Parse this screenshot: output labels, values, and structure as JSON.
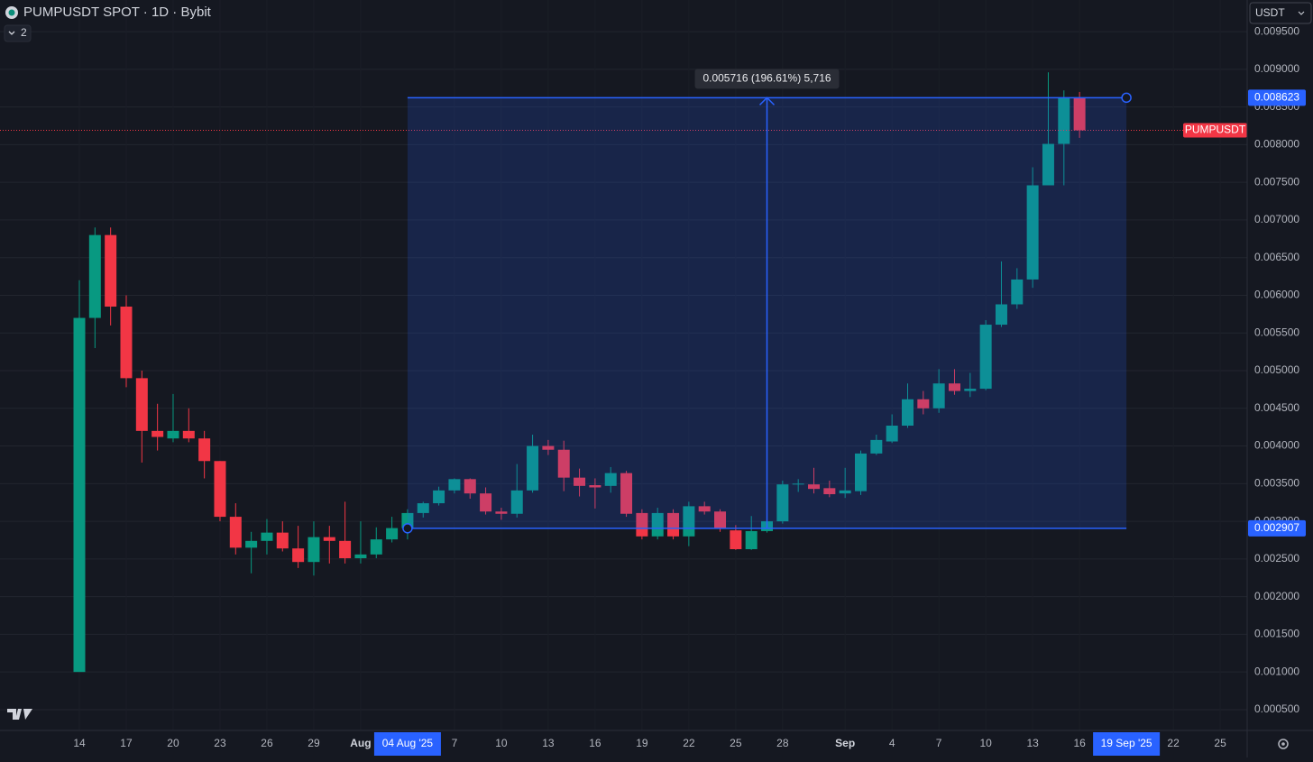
{
  "chart_data": {
    "type": "candlestick",
    "title": "PUMPUSDT SPOT · 1D · Bybit",
    "indicator_count": "2",
    "currency": "USDT",
    "x": [
      "2025-07-14",
      "2025-07-15",
      "2025-07-16",
      "2025-07-17",
      "2025-07-18",
      "2025-07-19",
      "2025-07-20",
      "2025-07-21",
      "2025-07-22",
      "2025-07-23",
      "2025-07-24",
      "2025-07-25",
      "2025-07-26",
      "2025-07-27",
      "2025-07-28",
      "2025-07-29",
      "2025-07-30",
      "2025-07-31",
      "2025-08-01",
      "2025-08-02",
      "2025-08-03",
      "2025-08-04",
      "2025-08-05",
      "2025-08-06",
      "2025-08-07",
      "2025-08-08",
      "2025-08-09",
      "2025-08-10",
      "2025-08-11",
      "2025-08-12",
      "2025-08-13",
      "2025-08-14",
      "2025-08-15",
      "2025-08-16",
      "2025-08-17",
      "2025-08-18",
      "2025-08-19",
      "2025-08-20",
      "2025-08-21",
      "2025-08-22",
      "2025-08-23",
      "2025-08-24",
      "2025-08-25",
      "2025-08-26",
      "2025-08-27",
      "2025-08-28",
      "2025-08-29",
      "2025-08-30",
      "2025-08-31",
      "2025-09-01",
      "2025-09-02",
      "2025-09-03",
      "2025-09-04",
      "2025-09-05",
      "2025-09-06",
      "2025-09-07",
      "2025-09-08",
      "2025-09-09",
      "2025-09-10",
      "2025-09-11",
      "2025-09-12",
      "2025-09-13",
      "2025-09-14",
      "2025-09-15",
      "2025-09-16"
    ],
    "open": [
      0.001,
      0.0057,
      0.0068,
      0.00585,
      0.0049,
      0.0042,
      0.0041,
      0.0042,
      0.0041,
      0.0038,
      0.00306,
      0.00265,
      0.00274,
      0.00285,
      0.00264,
      0.00246,
      0.00279,
      0.00274,
      0.00251,
      0.00256,
      0.00276,
      0.00291,
      0.00311,
      0.00324,
      0.00341,
      0.00356,
      0.00337,
      0.00313,
      0.0031,
      0.00341,
      0.004,
      0.00395,
      0.00358,
      0.00348,
      0.00347,
      0.00364,
      0.00311,
      0.0028,
      0.00311,
      0.0028,
      0.0032,
      0.00313,
      0.00288,
      0.00263,
      0.00287,
      0.003,
      0.00349,
      0.00349,
      0.00344,
      0.00337,
      0.0034,
      0.0039,
      0.00406,
      0.00427,
      0.00462,
      0.0045,
      0.00483,
      0.00473,
      0.00476,
      0.00561,
      0.00588,
      0.00621,
      0.00746,
      0.00801,
      0.00862
    ],
    "high": [
      0.0062,
      0.0069,
      0.0069,
      0.006,
      0.005,
      0.00456,
      0.00469,
      0.0045,
      0.0042,
      0.0038,
      0.00324,
      0.00286,
      0.00303,
      0.003,
      0.00294,
      0.003,
      0.00294,
      0.00326,
      0.003,
      0.00292,
      0.00306,
      0.00316,
      0.00326,
      0.00346,
      0.00357,
      0.00357,
      0.00345,
      0.00318,
      0.00376,
      0.00415,
      0.00408,
      0.00407,
      0.0037,
      0.00357,
      0.00372,
      0.00367,
      0.00316,
      0.00318,
      0.00316,
      0.00326,
      0.00326,
      0.00316,
      0.00295,
      0.00307,
      0.00311,
      0.00354,
      0.00356,
      0.00371,
      0.00354,
      0.00371,
      0.00394,
      0.00415,
      0.00442,
      0.00483,
      0.00473,
      0.00502,
      0.00502,
      0.00497,
      0.00567,
      0.00645,
      0.00636,
      0.0077,
      0.00896,
      0.00872,
      0.0087
    ],
    "low": [
      0.001,
      0.0053,
      0.0056,
      0.00478,
      0.00378,
      0.00394,
      0.00405,
      0.00405,
      0.00357,
      0.003,
      0.00256,
      0.00231,
      0.00256,
      0.0026,
      0.00238,
      0.00228,
      0.00244,
      0.00244,
      0.00244,
      0.00251,
      0.00272,
      0.00276,
      0.00305,
      0.00321,
      0.00337,
      0.0033,
      0.00309,
      0.00302,
      0.00305,
      0.00338,
      0.00388,
      0.0034,
      0.00333,
      0.00317,
      0.00338,
      0.00306,
      0.00276,
      0.00276,
      0.00276,
      0.00267,
      0.00309,
      0.00286,
      0.00262,
      0.00262,
      0.00285,
      0.00297,
      0.00339,
      0.00337,
      0.00332,
      0.00331,
      0.00335,
      0.00388,
      0.00404,
      0.00424,
      0.00442,
      0.00444,
      0.00468,
      0.00465,
      0.00474,
      0.00558,
      0.00582,
      0.0061,
      0.00746,
      0.00746,
      0.00809
    ],
    "close": [
      0.0057,
      0.0068,
      0.00585,
      0.0049,
      0.0042,
      0.00412,
      0.0042,
      0.0041,
      0.0038,
      0.00306,
      0.00265,
      0.00274,
      0.00285,
      0.00264,
      0.00246,
      0.00279,
      0.00274,
      0.00251,
      0.00256,
      0.00276,
      0.00291,
      0.00311,
      0.00324,
      0.00341,
      0.00356,
      0.00337,
      0.00313,
      0.0031,
      0.00341,
      0.004,
      0.00395,
      0.00358,
      0.00347,
      0.00345,
      0.00364,
      0.0031,
      0.0028,
      0.00311,
      0.0028,
      0.0032,
      0.00313,
      0.00291,
      0.00263,
      0.00287,
      0.003,
      0.00349,
      0.0035,
      0.00343,
      0.00336,
      0.00341,
      0.0039,
      0.00408,
      0.00427,
      0.00462,
      0.0045,
      0.00483,
      0.00473,
      0.00476,
      0.00561,
      0.00588,
      0.00621,
      0.00746,
      0.00801,
      0.00862,
      0.00819
    ],
    "up_color": "#089981",
    "down_color": "#f23645",
    "ylim": [
      0.000224,
      0.00992
    ],
    "yticks": [
      {
        "value": 0.0005,
        "label": "0.000500"
      },
      {
        "value": 0.001,
        "label": "0.001000"
      },
      {
        "value": 0.0015,
        "label": "0.001500"
      },
      {
        "value": 0.002,
        "label": "0.002000"
      },
      {
        "value": 0.0025,
        "label": "0.002500"
      },
      {
        "value": 0.003,
        "label": "0.003000"
      },
      {
        "value": 0.0035,
        "label": "0.003500"
      },
      {
        "value": 0.004,
        "label": "0.004000"
      },
      {
        "value": 0.0045,
        "label": "0.004500"
      },
      {
        "value": 0.005,
        "label": "0.005000"
      },
      {
        "value": 0.0055,
        "label": "0.005500"
      },
      {
        "value": 0.006,
        "label": "0.006000"
      },
      {
        "value": 0.0065,
        "label": "0.006500"
      },
      {
        "value": 0.007,
        "label": "0.007000"
      },
      {
        "value": 0.0075,
        "label": "0.007500"
      },
      {
        "value": 0.008,
        "label": "0.008000"
      },
      {
        "value": 0.0085,
        "label": "0.008500"
      },
      {
        "value": 0.009,
        "label": "0.009000"
      },
      {
        "value": 0.0095,
        "label": "0.009500"
      }
    ],
    "xticks": [
      {
        "value": "2025-07-14",
        "label": "14"
      },
      {
        "value": "2025-07-17",
        "label": "17"
      },
      {
        "value": "2025-07-20",
        "label": "20"
      },
      {
        "value": "2025-07-23",
        "label": "23"
      },
      {
        "value": "2025-07-26",
        "label": "26"
      },
      {
        "value": "2025-07-29",
        "label": "29"
      },
      {
        "value": "2025-08-01",
        "label": "Aug"
      },
      {
        "value": "2025-08-07",
        "label": "7"
      },
      {
        "value": "2025-08-10",
        "label": "10"
      },
      {
        "value": "2025-08-13",
        "label": "13"
      },
      {
        "value": "2025-08-16",
        "label": "16"
      },
      {
        "value": "2025-08-19",
        "label": "19"
      },
      {
        "value": "2025-08-22",
        "label": "22"
      },
      {
        "value": "2025-08-25",
        "label": "25"
      },
      {
        "value": "2025-08-28",
        "label": "28"
      },
      {
        "value": "2025-09-01",
        "label": "Sep"
      },
      {
        "value": "2025-09-04",
        "label": "4"
      },
      {
        "value": "2025-09-07",
        "label": "7"
      },
      {
        "value": "2025-09-10",
        "label": "10"
      },
      {
        "value": "2025-09-13",
        "label": "13"
      },
      {
        "value": "2025-09-16",
        "label": "16"
      },
      {
        "value": "2025-09-22",
        "label": "22"
      },
      {
        "value": "2025-09-25",
        "label": "25"
      }
    ],
    "grid": true,
    "last_price": {
      "name": "PUMPUSDT",
      "value": 0.00819
    },
    "measure": {
      "from": 0.002907,
      "to": 0.008623,
      "start": "2025-08-04",
      "end": "2025-09-19",
      "start_label": "04 Aug '25",
      "end_label": "19 Sep '25",
      "label": "0.005716 (196.61%) 5,716"
    }
  }
}
